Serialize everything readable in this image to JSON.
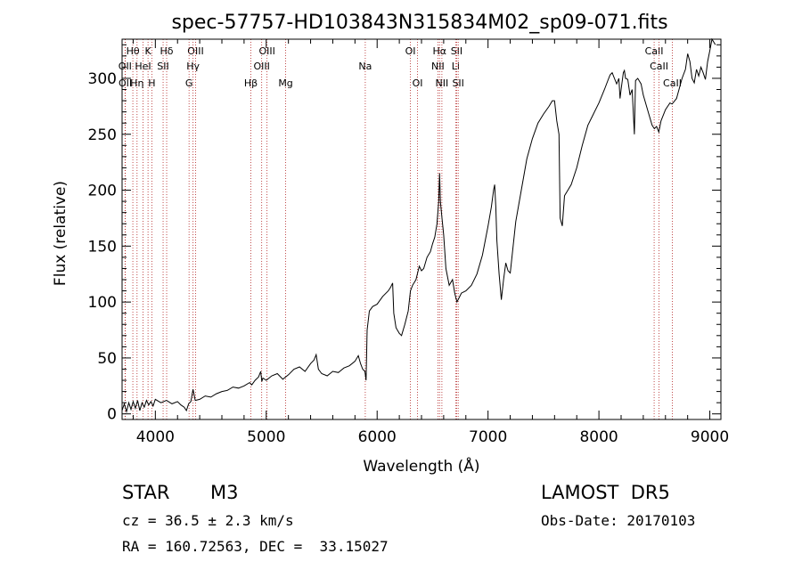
{
  "chart_data": {
    "type": "line",
    "title": "spec-57757-HD103843N315834M02_sp09-071.fits",
    "xlabel": "Wavelength (Å)",
    "ylabel": "Flux (relative)",
    "xlim": [
      3700,
      9100
    ],
    "ylim": [
      -5,
      335
    ],
    "x_ticks": [
      4000,
      5000,
      6000,
      7000,
      8000,
      9000
    ],
    "y_ticks": [
      0,
      50,
      100,
      150,
      200,
      250,
      300
    ],
    "grid": false,
    "line_color": "#000000",
    "marker_color": "#b22222",
    "series": [
      {
        "points": [
          [
            3700,
            3
          ],
          [
            3720,
            9
          ],
          [
            3740,
            2
          ],
          [
            3760,
            10
          ],
          [
            3780,
            4
          ],
          [
            3800,
            11
          ],
          [
            3820,
            5
          ],
          [
            3840,
            12
          ],
          [
            3860,
            3
          ],
          [
            3880,
            10
          ],
          [
            3900,
            6
          ],
          [
            3920,
            12
          ],
          [
            3940,
            8
          ],
          [
            3960,
            11
          ],
          [
            3980,
            7
          ],
          [
            4000,
            13
          ],
          [
            4050,
            10
          ],
          [
            4100,
            12
          ],
          [
            4150,
            9
          ],
          [
            4200,
            11
          ],
          [
            4230,
            8
          ],
          [
            4260,
            6
          ],
          [
            4280,
            3
          ],
          [
            4300,
            9
          ],
          [
            4320,
            11
          ],
          [
            4340,
            22
          ],
          [
            4360,
            12
          ],
          [
            4400,
            13
          ],
          [
            4450,
            16
          ],
          [
            4500,
            15
          ],
          [
            4550,
            18
          ],
          [
            4600,
            20
          ],
          [
            4650,
            21
          ],
          [
            4700,
            24
          ],
          [
            4750,
            23
          ],
          [
            4800,
            25
          ],
          [
            4850,
            28
          ],
          [
            4870,
            26
          ],
          [
            4900,
            30
          ],
          [
            4930,
            33
          ],
          [
            4950,
            38
          ],
          [
            4960,
            29
          ],
          [
            4970,
            32
          ],
          [
            5000,
            30
          ],
          [
            5050,
            34
          ],
          [
            5100,
            36
          ],
          [
            5150,
            31
          ],
          [
            5200,
            35
          ],
          [
            5250,
            40
          ],
          [
            5300,
            42
          ],
          [
            5350,
            38
          ],
          [
            5400,
            45
          ],
          [
            5430,
            48
          ],
          [
            5450,
            53
          ],
          [
            5470,
            40
          ],
          [
            5500,
            36
          ],
          [
            5550,
            34
          ],
          [
            5600,
            38
          ],
          [
            5650,
            37
          ],
          [
            5700,
            41
          ],
          [
            5750,
            43
          ],
          [
            5800,
            47
          ],
          [
            5830,
            52
          ],
          [
            5850,
            45
          ],
          [
            5870,
            40
          ],
          [
            5890,
            38
          ],
          [
            5900,
            30
          ],
          [
            5910,
            75
          ],
          [
            5930,
            92
          ],
          [
            5960,
            96
          ],
          [
            6000,
            98
          ],
          [
            6050,
            105
          ],
          [
            6100,
            110
          ],
          [
            6120,
            113
          ],
          [
            6140,
            117
          ],
          [
            6150,
            90
          ],
          [
            6170,
            77
          ],
          [
            6200,
            72
          ],
          [
            6220,
            70
          ],
          [
            6250,
            80
          ],
          [
            6280,
            92
          ],
          [
            6300,
            110
          ],
          [
            6320,
            115
          ],
          [
            6350,
            120
          ],
          [
            6380,
            132
          ],
          [
            6400,
            128
          ],
          [
            6420,
            130
          ],
          [
            6450,
            140
          ],
          [
            6480,
            145
          ],
          [
            6500,
            152
          ],
          [
            6520,
            158
          ],
          [
            6540,
            170
          ],
          [
            6555,
            190
          ],
          [
            6563,
            215
          ],
          [
            6570,
            190
          ],
          [
            6585,
            175
          ],
          [
            6600,
            160
          ],
          [
            6620,
            130
          ],
          [
            6650,
            115
          ],
          [
            6680,
            120
          ],
          [
            6700,
            108
          ],
          [
            6720,
            100
          ],
          [
            6740,
            104
          ],
          [
            6760,
            108
          ],
          [
            6800,
            110
          ],
          [
            6850,
            115
          ],
          [
            6900,
            125
          ],
          [
            6950,
            142
          ],
          [
            7000,
            168
          ],
          [
            7030,
            185
          ],
          [
            7050,
            200
          ],
          [
            7060,
            205
          ],
          [
            7070,
            185
          ],
          [
            7080,
            155
          ],
          [
            7100,
            125
          ],
          [
            7120,
            102
          ],
          [
            7140,
            120
          ],
          [
            7160,
            135
          ],
          [
            7180,
            128
          ],
          [
            7200,
            126
          ],
          [
            7250,
            172
          ],
          [
            7300,
            200
          ],
          [
            7350,
            228
          ],
          [
            7400,
            246
          ],
          [
            7450,
            260
          ],
          [
            7500,
            268
          ],
          [
            7550,
            275
          ],
          [
            7580,
            280
          ],
          [
            7600,
            280
          ],
          [
            7620,
            262
          ],
          [
            7640,
            250
          ],
          [
            7650,
            175
          ],
          [
            7670,
            168
          ],
          [
            7690,
            195
          ],
          [
            7720,
            200
          ],
          [
            7750,
            205
          ],
          [
            7800,
            220
          ],
          [
            7850,
            240
          ],
          [
            7900,
            258
          ],
          [
            7950,
            268
          ],
          [
            8000,
            278
          ],
          [
            8050,
            290
          ],
          [
            8080,
            298
          ],
          [
            8100,
            303
          ],
          [
            8120,
            305
          ],
          [
            8140,
            300
          ],
          [
            8160,
            295
          ],
          [
            8180,
            300
          ],
          [
            8190,
            282
          ],
          [
            8200,
            290
          ],
          [
            8220,
            305
          ],
          [
            8230,
            307
          ],
          [
            8240,
            300
          ],
          [
            8260,
            299
          ],
          [
            8280,
            285
          ],
          [
            8300,
            290
          ],
          [
            8320,
            250
          ],
          [
            8330,
            298
          ],
          [
            8350,
            300
          ],
          [
            8380,
            295
          ],
          [
            8400,
            285
          ],
          [
            8450,
            268
          ],
          [
            8480,
            258
          ],
          [
            8500,
            255
          ],
          [
            8520,
            257
          ],
          [
            8540,
            252
          ],
          [
            8560,
            262
          ],
          [
            8600,
            272
          ],
          [
            8640,
            278
          ],
          [
            8660,
            277
          ],
          [
            8700,
            282
          ],
          [
            8750,
            300
          ],
          [
            8780,
            308
          ],
          [
            8800,
            322
          ],
          [
            8820,
            315
          ],
          [
            8840,
            300
          ],
          [
            8860,
            296
          ],
          [
            8880,
            308
          ],
          [
            8900,
            302
          ],
          [
            8920,
            310
          ],
          [
            8940,
            305
          ],
          [
            8960,
            299
          ],
          [
            8980,
            315
          ],
          [
            9000,
            325
          ],
          [
            9020,
            335
          ],
          [
            9050,
            330
          ]
        ]
      }
    ],
    "line_markers": [
      {
        "label": "Hθ",
        "wl": 3797,
        "row": 0
      },
      {
        "label": "OII",
        "wl": 3727,
        "row": 1
      },
      {
        "label": "OII",
        "wl": 3729,
        "row": 2
      },
      {
        "label": "K",
        "wl": 3934,
        "row": 0
      },
      {
        "label": "HeI",
        "wl": 3889,
        "row": 1
      },
      {
        "label": "Hη",
        "wl": 3835,
        "row": 2
      },
      {
        "label": "Hδ",
        "wl": 4102,
        "row": 0
      },
      {
        "label": "SII",
        "wl": 4070,
        "row": 1
      },
      {
        "label": "H",
        "wl": 3968,
        "row": 2
      },
      {
        "label": "OIII",
        "wl": 4363,
        "row": 0
      },
      {
        "label": "Hγ",
        "wl": 4340,
        "row": 1
      },
      {
        "label": "G",
        "wl": 4304,
        "row": 2
      },
      {
        "label": "OIII",
        "wl": 5007,
        "row": 0
      },
      {
        "label": "OIII",
        "wl": 4959,
        "row": 1
      },
      {
        "label": "Hβ",
        "wl": 4861,
        "row": 2
      },
      {
        "label": "Mg",
        "wl": 5175,
        "row": 2
      },
      {
        "label": "Na",
        "wl": 5893,
        "row": 1
      },
      {
        "label": "OI",
        "wl": 6300,
        "row": 0
      },
      {
        "label": "OI",
        "wl": 6364,
        "row": 2
      },
      {
        "label": "Hα",
        "wl": 6563,
        "row": 0
      },
      {
        "label": "NII",
        "wl": 6548,
        "row": 1
      },
      {
        "label": "NII",
        "wl": 6584,
        "row": 2
      },
      {
        "label": "SII",
        "wl": 6717,
        "row": 0
      },
      {
        "label": "Li",
        "wl": 6708,
        "row": 1
      },
      {
        "label": "SII",
        "wl": 6731,
        "row": 2
      },
      {
        "label": "CaII",
        "wl": 8498,
        "row": 0
      },
      {
        "label": "CaII",
        "wl": 8542,
        "row": 1
      },
      {
        "label": "CaII",
        "wl": 8662,
        "row": 2
      }
    ]
  },
  "info": {
    "object_class": "STAR",
    "subclass": "M3",
    "survey": "LAMOST  DR5",
    "redshift": "cz = 36.5 ± 2.3 km/s",
    "obs_date": "Obs-Date: 20170103",
    "coords": "RA = 160.72563, DEC =  33.15027"
  }
}
